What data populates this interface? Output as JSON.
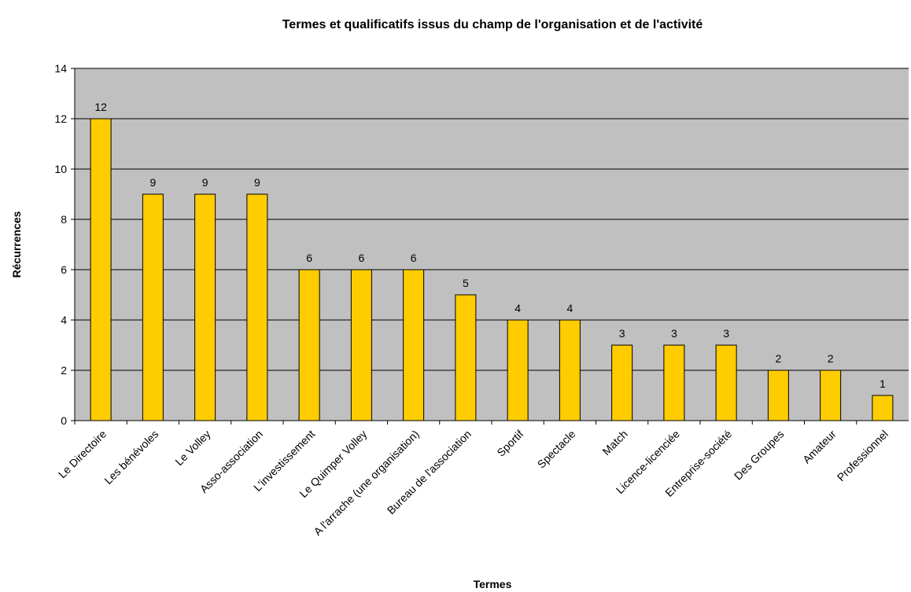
{
  "chart_data": {
    "type": "bar",
    "title": "Termes et qualificatifs issus du champ de l'organisation et de l'activité",
    "x_label": "Termes",
    "y_label": "Récurrences",
    "categories": [
      "Le Directoire",
      "Les bénévoles",
      "Le Volley",
      "Asso-association",
      "L'investissement",
      "Le Quimper Volley",
      "A l'arrache (une organisation)",
      "Bureau de l'association",
      "Sportif",
      "Spectacle",
      "Match",
      "Licence-licenciée",
      "Entreprise-société",
      "Des Groupes",
      "Amateur",
      "Professionnel"
    ],
    "values": [
      12,
      9,
      9,
      9,
      6,
      6,
      6,
      5,
      4,
      4,
      3,
      3,
      3,
      2,
      2,
      1
    ],
    "color": "#ffcc00",
    "ylim": [
      0,
      14
    ],
    "yticks": [
      0,
      2,
      4,
      6,
      8,
      10,
      12,
      14
    ],
    "grid": true
  }
}
